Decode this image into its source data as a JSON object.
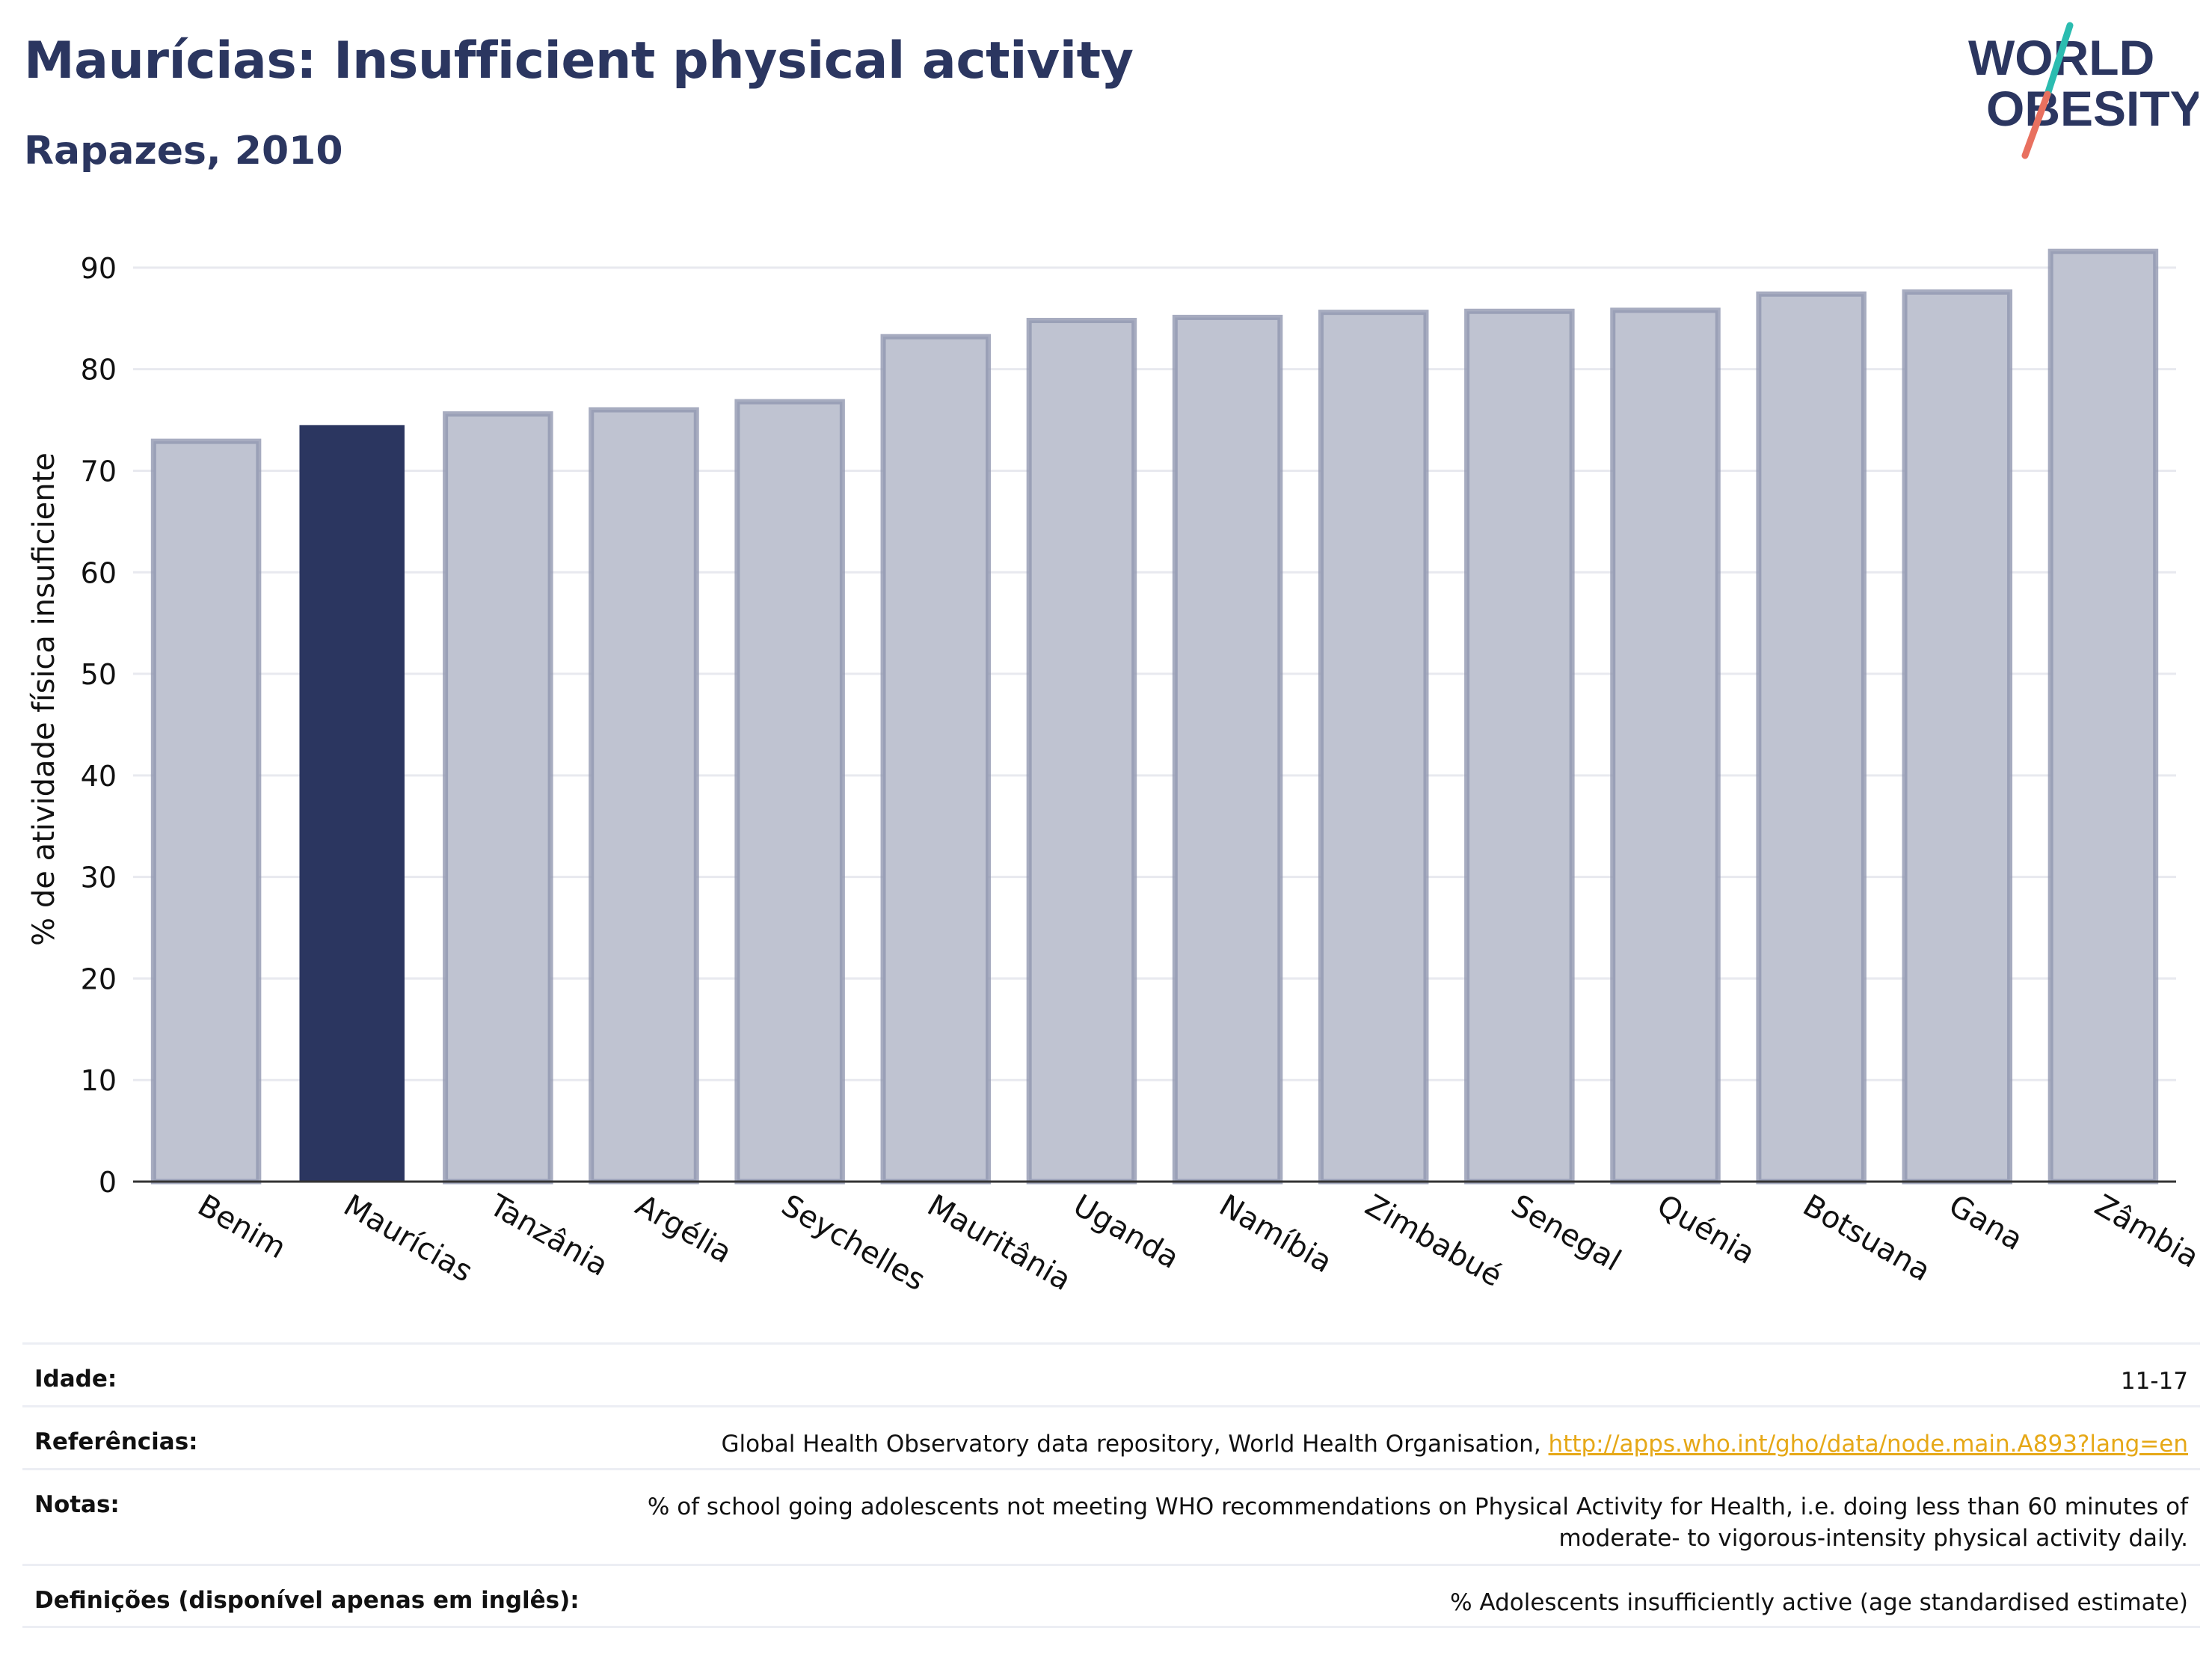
{
  "header": {
    "title": "Maurícias: Insufficient physical activity",
    "subtitle": "Rapazes, 2010"
  },
  "logo": {
    "line1": "WORLD",
    "line2": "OBESITY"
  },
  "colors": {
    "highlight": "#2b3660",
    "bar_fill": "#bfc3d1",
    "bar_stroke": "#9197b0",
    "grid": "#e8e9ef",
    "logo_teal": "#2bbcb0",
    "logo_coral": "#e8705f"
  },
  "chart_data": {
    "type": "bar",
    "categories": [
      "Benim",
      "Maurícias",
      "Tanzânia",
      "Argélia",
      "Seychelles",
      "Mauritânia",
      "Uganda",
      "Namíbia",
      "Zimbabué",
      "Senegal",
      "Quénia",
      "Botsuana",
      "Gana",
      "Zâmbia"
    ],
    "values": [
      72.9,
      74.5,
      75.6,
      76.0,
      76.8,
      83.2,
      84.8,
      85.1,
      85.6,
      85.7,
      85.8,
      87.4,
      87.6,
      91.6
    ],
    "highlight": "Maurícias",
    "ylabel": "% de atividade física insuficiente",
    "ylim": [
      0,
      95
    ],
    "yticks": [
      0,
      10,
      20,
      30,
      40,
      50,
      60,
      70,
      80,
      90
    ],
    "grid": true
  },
  "meta": {
    "age": {
      "label": "Idade:",
      "value": "11-17"
    },
    "refs": {
      "label": "Referências:",
      "text": "Global Health Observatory data repository, World Health Organisation, ",
      "link": "http://apps.who.int/gho/data/node.main.A893?lang=en"
    },
    "notes": {
      "label": "Notas:",
      "line1": "% of school going adolescents not meeting WHO recommendations on Physical Activity for Health, i.e. doing less than 60 minutes of",
      "line2": "moderate- to vigorous-intensity physical activity daily."
    },
    "defs": {
      "label": "Definições (disponível apenas em inglês):",
      "value": "% Adolescents insufficiently active (age standardised estimate)"
    }
  }
}
